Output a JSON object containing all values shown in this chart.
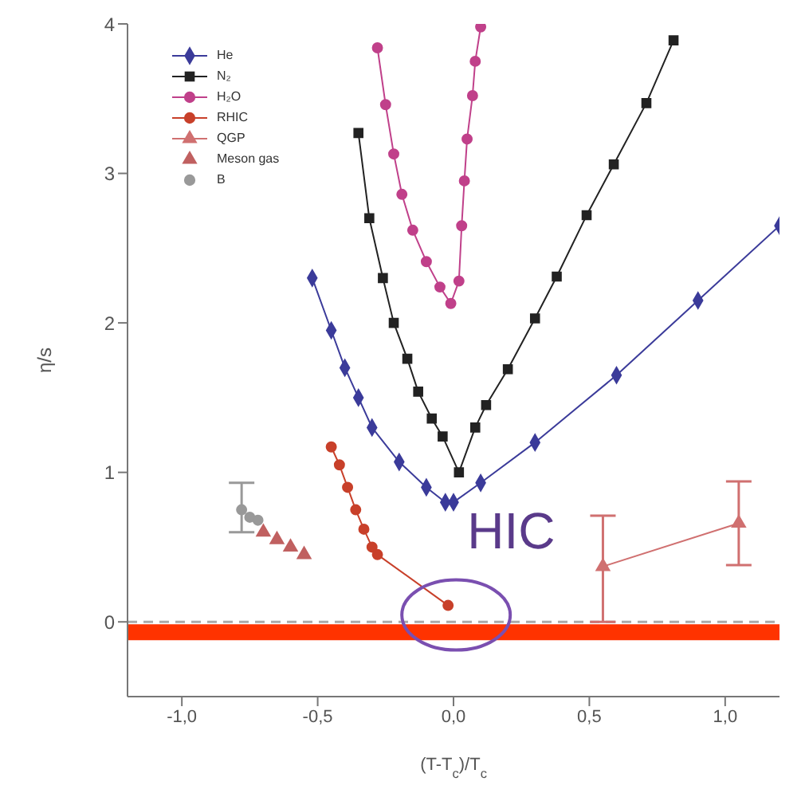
{
  "chart_data": {
    "type": "line",
    "xlabel": "(T-T$_{c}$)/T$_{c}$",
    "ylabel": "η/s",
    "xlim": [
      -1.2,
      1.2
    ],
    "xticks": [
      {
        "value": -1,
        "label": "-1,0"
      },
      {
        "value": -0.5,
        "label": "-0,5"
      },
      {
        "value": 0,
        "label": "0,0"
      },
      {
        "value": 0.5,
        "label": "0,5"
      },
      {
        "value": 1,
        "label": "1,0"
      }
    ],
    "ylim": [
      -0.5,
      4
    ],
    "yticks": [
      0,
      1,
      2,
      3,
      4
    ],
    "legend": "top left",
    "line_style": "solid",
    "series": [
      {
        "name": "He",
        "color": "#3b3b9a",
        "marker": "diamond",
        "x": [
          -0.52,
          -0.45,
          -0.4,
          -0.35,
          -0.3,
          -0.2,
          -0.1,
          -0.03,
          0,
          0.1,
          0.3,
          0.6,
          0.9,
          1.2
        ],
        "values": [
          2.3,
          1.95,
          1.7,
          1.5,
          1.3,
          1.07,
          0.9,
          0.8,
          0.8,
          0.93,
          1.2,
          1.65,
          2.15,
          2.65
        ]
      },
      {
        "name": "N₂",
        "color": "#222222",
        "marker": "square",
        "x": [
          -0.35,
          -0.31,
          -0.26,
          -0.22,
          -0.17,
          -0.13,
          -0.08,
          -0.04,
          0.02,
          0.08,
          0.12,
          0.2,
          0.3,
          0.38,
          0.49,
          0.59,
          0.71,
          0.81
        ],
        "values": [
          3.27,
          2.7,
          2.3,
          2.0,
          1.76,
          1.54,
          1.36,
          1.24,
          1.0,
          1.3,
          1.45,
          1.69,
          2.03,
          2.31,
          2.72,
          3.06,
          3.47,
          3.89
        ]
      },
      {
        "name": "H₂O",
        "color": "#c0408a",
        "marker": "circle",
        "x": [
          -0.28,
          -0.25,
          -0.22,
          -0.19,
          -0.15,
          -0.1,
          -0.05,
          -0.01,
          0.02,
          0.03,
          0.04,
          0.05,
          0.07,
          0.08,
          0.1
        ],
        "values": [
          3.84,
          3.46,
          3.13,
          2.86,
          2.62,
          2.41,
          2.24,
          2.13,
          2.28,
          2.65,
          2.95,
          3.23,
          3.52,
          3.75,
          3.98
        ]
      },
      {
        "name": "RHIC",
        "color": "#c8402a",
        "marker": "circle",
        "x": [
          -0.45,
          -0.42,
          -0.39,
          -0.36,
          -0.33,
          -0.3,
          -0.28,
          -0.02
        ],
        "values": [
          1.17,
          1.05,
          0.9,
          0.75,
          0.62,
          0.5,
          0.45,
          0.11
        ]
      },
      {
        "name": "QGP",
        "color": "#d07070",
        "marker": "triangle",
        "x": [
          0.55,
          1.05
        ],
        "values": [
          0.37,
          0.66
        ],
        "errors": [
          [
            0,
            0.71
          ],
          [
            0.38,
            0.94
          ]
        ]
      },
      {
        "name": "Meson gas",
        "type": "scatter",
        "color": "#c06060",
        "marker": "triangle",
        "x": [
          -0.7,
          -0.65,
          -0.6,
          -0.55
        ],
        "values": [
          0.6,
          0.55,
          0.5,
          0.45
        ]
      },
      {
        "name": "B",
        "type": "scatter",
        "color": "#999999",
        "marker": "circle",
        "x": [
          -0.78,
          -0.75,
          -0.72
        ],
        "values": [
          0.75,
          0.7,
          0.68
        ],
        "errors": [
          [
            0.6,
            0.93
          ],
          null,
          null
        ]
      }
    ],
    "ref_lines": [
      {
        "axis": "y",
        "value": 0,
        "color": "#aaaaaa",
        "line_style": "dashed"
      },
      {
        "axis": "y",
        "value": -0.07,
        "color": "#ff3300",
        "line_style": "solid"
      }
    ],
    "annotations": [
      {
        "text": "HIC",
        "x": -0.02,
        "y": 0.11
      }
    ]
  }
}
